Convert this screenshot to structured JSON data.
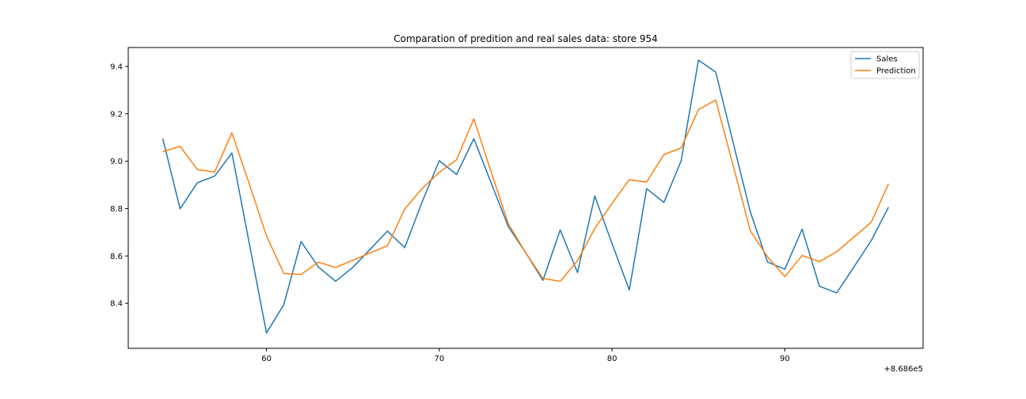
{
  "chart_data": {
    "type": "line",
    "title": "Comparation of predition and real sales data: store 954",
    "xlabel": "",
    "ylabel": "",
    "x_offset_label": "+8.686e5",
    "xlim": [
      52.0,
      98.0
    ],
    "ylim": [
      8.21,
      9.48
    ],
    "xticks": [
      60,
      70,
      80,
      90
    ],
    "yticks": [
      8.4,
      8.6,
      8.8,
      9.0,
      9.2,
      9.4
    ],
    "ytick_labels": [
      "8.4",
      "8.6",
      "8.8",
      "9.0",
      "9.2",
      "9.4"
    ],
    "grid": false,
    "legend": "top-right",
    "x": [
      54,
      55,
      56,
      57,
      58,
      59,
      60,
      61,
      62,
      63,
      64,
      65,
      66,
      67,
      68,
      69,
      70,
      71,
      72,
      73,
      74,
      75,
      76,
      77,
      78,
      79,
      80,
      81,
      82,
      83,
      84,
      85,
      86,
      87,
      88,
      89,
      90,
      91,
      92,
      93,
      94,
      95,
      96
    ],
    "series": [
      {
        "name": "Sales",
        "color": "#1f77b4",
        "values": [
          9.095,
          8.799,
          8.909,
          8.937,
          9.035,
          8.655,
          8.275,
          8.394,
          8.661,
          8.554,
          8.493,
          8.552,
          8.628,
          8.705,
          8.635,
          8.827,
          9.002,
          8.944,
          9.095,
          8.909,
          8.723,
          8.614,
          8.497,
          8.71,
          8.53,
          8.853,
          8.652,
          8.456,
          8.884,
          8.826,
          9.002,
          9.427,
          9.376,
          9.081,
          8.786,
          8.574,
          8.544,
          8.713,
          8.472,
          8.444,
          8.554,
          8.665,
          8.806
        ]
      },
      {
        "name": "Prediction",
        "color": "#ff7f0e",
        "values": [
          9.04,
          9.063,
          8.965,
          8.954,
          9.12,
          8.905,
          8.685,
          8.526,
          8.522,
          8.574,
          8.551,
          8.582,
          8.613,
          8.643,
          8.798,
          8.884,
          8.953,
          9.006,
          9.179,
          8.955,
          8.735,
          8.614,
          8.505,
          8.493,
          8.58,
          8.716,
          8.822,
          8.922,
          8.912,
          9.028,
          9.056,
          9.218,
          9.258,
          8.984,
          8.707,
          8.596,
          8.513,
          8.602,
          8.576,
          8.618,
          8.68,
          8.742,
          8.905
        ]
      }
    ]
  }
}
